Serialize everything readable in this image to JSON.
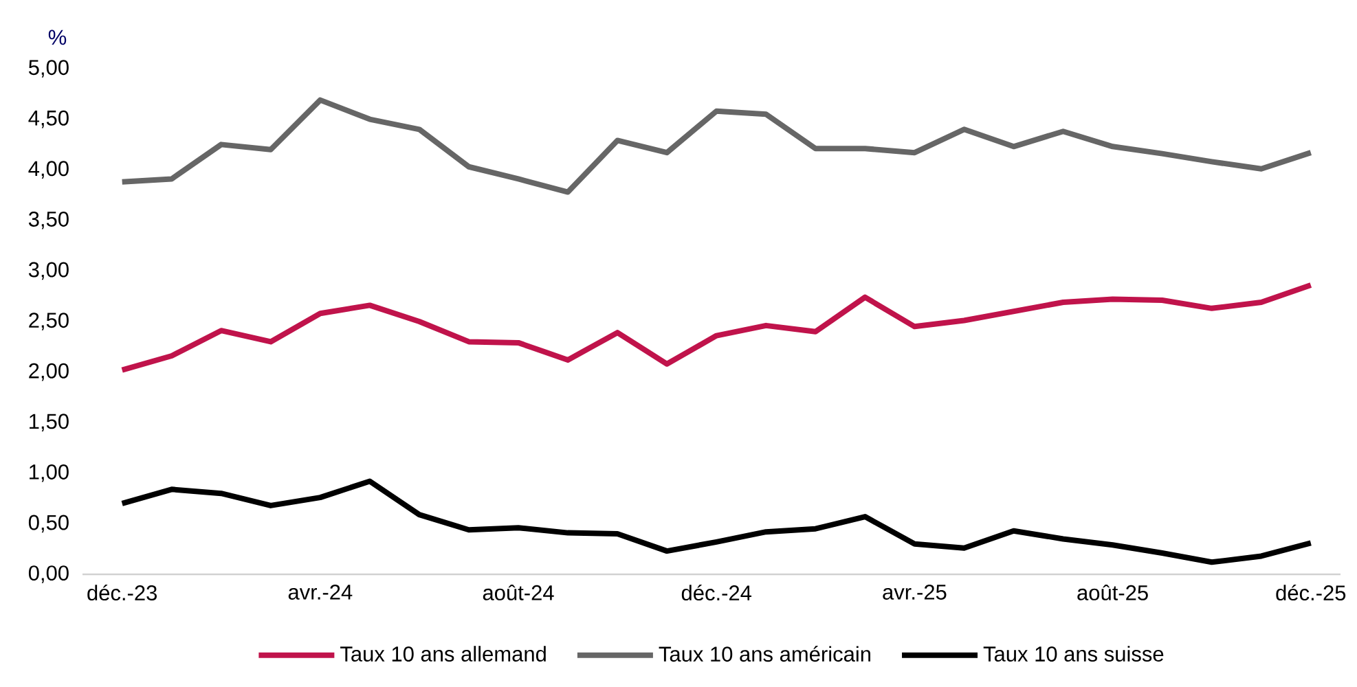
{
  "chart_data": {
    "type": "line",
    "ylabel": "%",
    "categories": [
      "déc.-23",
      null,
      null,
      null,
      "avr.-24",
      null,
      null,
      null,
      "août-24",
      null,
      null,
      null,
      "déc.-24",
      null,
      null,
      null,
      "avr.-25",
      null,
      null,
      null,
      "août-25",
      null,
      null,
      null,
      "déc.-25"
    ],
    "series": [
      {
        "name": "Taux 10 ans allemand",
        "color": "#c0134b",
        "values": [
          2.02,
          2.16,
          2.41,
          2.3,
          2.58,
          2.66,
          2.5,
          2.3,
          2.29,
          2.12,
          2.39,
          2.08,
          2.36,
          2.46,
          2.4,
          2.74,
          2.45,
          2.51,
          2.6,
          2.69,
          2.72,
          2.71,
          2.63,
          2.69,
          2.86
        ]
      },
      {
        "name": "Taux 10 ans américain",
        "color": "#666666",
        "values": [
          3.88,
          3.91,
          4.25,
          4.2,
          4.69,
          4.5,
          4.4,
          4.03,
          3.91,
          3.78,
          4.29,
          4.17,
          4.58,
          4.55,
          4.21,
          4.21,
          4.17,
          4.4,
          4.23,
          4.38,
          4.23,
          4.16,
          4.08,
          4.01,
          4.17
        ]
      },
      {
        "name": "Taux 10 ans suisse",
        "color": "#000000",
        "values": [
          0.7,
          0.84,
          0.8,
          0.68,
          0.76,
          0.92,
          0.59,
          0.44,
          0.46,
          0.41,
          0.4,
          0.23,
          0.32,
          0.42,
          0.45,
          0.57,
          0.3,
          0.26,
          0.43,
          0.35,
          0.29,
          0.21,
          0.12,
          0.18,
          0.31
        ]
      }
    ],
    "ylim": [
      0,
      5
    ],
    "yticks": [
      {
        "value": 0,
        "label": "0,00"
      },
      {
        "value": 0.5,
        "label": "0,50"
      },
      {
        "value": 1,
        "label": "1,00"
      },
      {
        "value": 1.5,
        "label": "1,50"
      },
      {
        "value": 2,
        "label": "2,00"
      },
      {
        "value": 2.5,
        "label": "2,50"
      },
      {
        "value": 3,
        "label": "3,00"
      },
      {
        "value": 3.5,
        "label": "3,50"
      },
      {
        "value": 4,
        "label": "4,00"
      },
      {
        "value": 4.5,
        "label": "4,50"
      },
      {
        "value": 5,
        "label": "5,00"
      }
    ],
    "legend": "bottom",
    "line_style": "solid"
  }
}
